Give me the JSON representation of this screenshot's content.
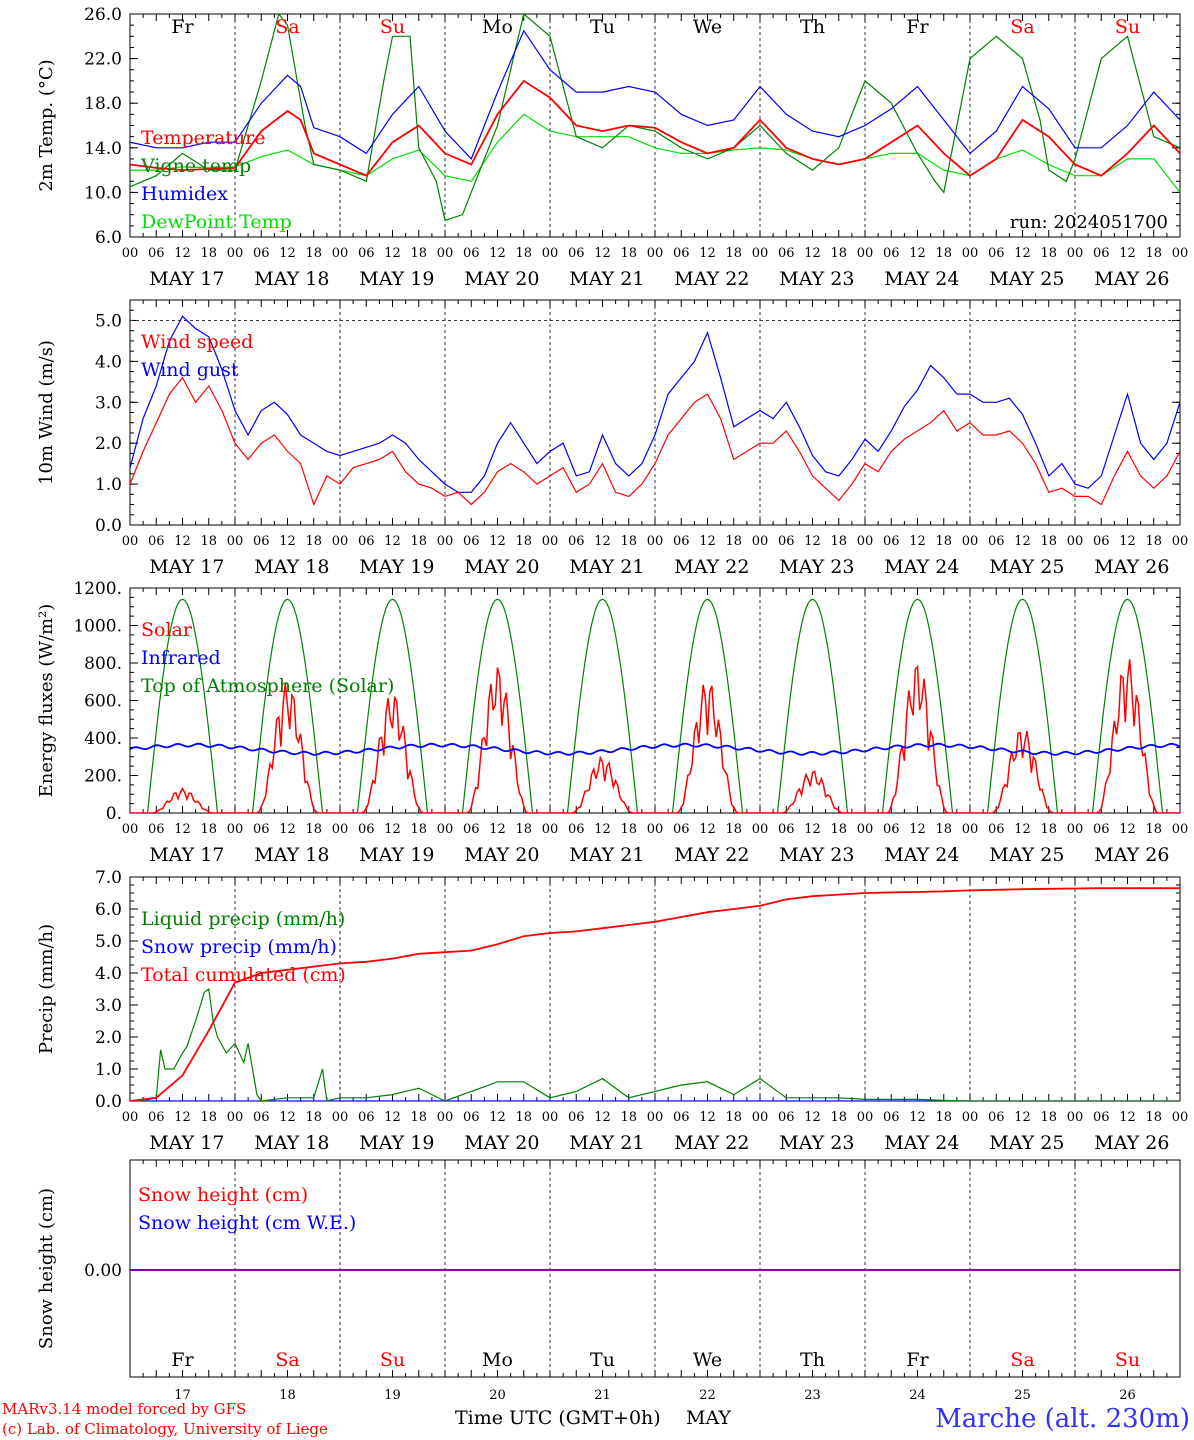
{
  "run_label": "run: 2024051700",
  "days": [
    "Fr",
    "Sa",
    "Su",
    "Mo",
    "Tu",
    "We",
    "Th",
    "Fr",
    "Sa",
    "Su"
  ],
  "weekend_flags": [
    false,
    true,
    true,
    false,
    false,
    false,
    false,
    false,
    true,
    true
  ],
  "dates": [
    "MAY 17",
    "MAY 18",
    "MAY 19",
    "MAY 20",
    "MAY 21",
    "MAY 22",
    "MAY 23",
    "MAY 24",
    "MAY 25",
    "MAY 26"
  ],
  "day_numbers": [
    "17",
    "18",
    "19",
    "20",
    "21",
    "22",
    "23",
    "24",
    "25",
    "26"
  ],
  "hour_ticks": [
    "00",
    "06",
    "12",
    "18"
  ],
  "footer": {
    "credit_line1": "MARv3.14 model forced by GFS",
    "credit_line2": "(c) Lab. of Climatology, University of Liege",
    "xlabel": "Time UTC (GMT+0h)",
    "month": "MAY",
    "station": "Marche (alt. 230m)"
  },
  "colors": {
    "red": "#ff0000",
    "blue": "#0000ff",
    "green": "#008000",
    "lightgreen": "#00e000",
    "purple": "#8000a0"
  },
  "chart_data": [
    {
      "type": "line",
      "ylabel": "2m Temp. (°C)",
      "ylim": [
        6,
        26
      ],
      "yticks": [
        "6.0",
        "10.0",
        "14.0",
        "18.0",
        "22.0",
        "26.0"
      ],
      "x_unit": "hours since 2024-05-17 00 UTC",
      "series": [
        {
          "name": "Temperature",
          "color": "#ff0000",
          "x": [
            0,
            6,
            12,
            18,
            24,
            30,
            36,
            39,
            42,
            48,
            54,
            60,
            66,
            72,
            78,
            84,
            90,
            96,
            102,
            108,
            114,
            120,
            126,
            132,
            138,
            144,
            150,
            156,
            162,
            168,
            174,
            180,
            186,
            192,
            198,
            204,
            210,
            216,
            222,
            228,
            234,
            240
          ],
          "y": [
            12.5,
            12.2,
            12.0,
            12.1,
            12.2,
            15.5,
            17.3,
            16.5,
            13.5,
            12.5,
            11.5,
            14.5,
            16.0,
            13.5,
            12.5,
            17.0,
            20.0,
            18.5,
            16.0,
            15.5,
            16.0,
            15.8,
            14.5,
            13.5,
            14.0,
            16.5,
            14.0,
            13.0,
            12.5,
            13.0,
            14.5,
            16.0,
            13.5,
            11.5,
            13.0,
            16.5,
            15.0,
            12.5,
            11.5,
            13.5,
            16.0,
            13.5
          ]
        },
        {
          "name": "Vigne temp",
          "color": "#008000",
          "x": [
            0,
            6,
            12,
            18,
            24,
            30,
            34,
            36,
            40,
            42,
            48,
            54,
            58,
            60,
            64,
            66,
            70,
            72,
            76,
            84,
            90,
            96,
            102,
            108,
            114,
            120,
            126,
            132,
            138,
            144,
            150,
            156,
            162,
            168,
            174,
            180,
            184,
            186,
            190,
            192,
            198,
            204,
            208,
            210,
            214,
            216,
            222,
            228,
            234,
            240
          ],
          "y": [
            10.5,
            11.5,
            13.5,
            12.0,
            12.0,
            20.0,
            26.0,
            25.0,
            16.0,
            12.5,
            12.0,
            11.0,
            20.0,
            24.0,
            24.0,
            14.0,
            11.0,
            7.5,
            8.0,
            16.0,
            26.0,
            24.0,
            15.0,
            14.0,
            16.0,
            15.5,
            14.0,
            13.0,
            14.0,
            16.0,
            13.5,
            12.0,
            14.0,
            20.0,
            18.0,
            13.5,
            11.0,
            10.0,
            18.0,
            22.0,
            24.0,
            22.0,
            16.5,
            12.0,
            11.0,
            13.0,
            22.0,
            24.0,
            15.0,
            14.0
          ]
        },
        {
          "name": "Humidex",
          "color": "#0000ff",
          "x": [
            0,
            6,
            12,
            18,
            24,
            30,
            36,
            39,
            42,
            48,
            54,
            60,
            66,
            72,
            78,
            84,
            90,
            96,
            102,
            108,
            114,
            120,
            126,
            132,
            138,
            144,
            150,
            156,
            162,
            168,
            174,
            180,
            186,
            192,
            198,
            204,
            210,
            216,
            222,
            228,
            234,
            240
          ],
          "y": [
            14.5,
            14.0,
            14.0,
            14.5,
            14.5,
            18.0,
            20.5,
            19.5,
            15.8,
            15.0,
            13.5,
            17.0,
            19.5,
            15.5,
            13.0,
            19.0,
            24.5,
            21.0,
            19.0,
            19.0,
            19.5,
            19.0,
            17.0,
            16.0,
            16.5,
            19.5,
            17.0,
            15.5,
            15.0,
            16.0,
            17.5,
            19.5,
            16.5,
            13.5,
            15.5,
            19.5,
            17.5,
            14.0,
            14.0,
            16.0,
            19.0,
            16.5
          ]
        },
        {
          "name": "DewPoint Temp",
          "color": "#00e000",
          "x": [
            0,
            6,
            12,
            18,
            24,
            30,
            36,
            42,
            48,
            54,
            60,
            66,
            72,
            78,
            84,
            90,
            96,
            102,
            108,
            114,
            120,
            126,
            132,
            138,
            144,
            150,
            156,
            162,
            168,
            174,
            180,
            186,
            192,
            198,
            204,
            210,
            216,
            222,
            228,
            234,
            240
          ],
          "y": [
            12.0,
            12.0,
            12.3,
            12.2,
            12.3,
            13.2,
            13.8,
            12.5,
            12.0,
            11.5,
            13.0,
            13.8,
            11.5,
            11.0,
            14.5,
            17.0,
            15.5,
            15.0,
            15.0,
            15.0,
            14.0,
            13.5,
            13.5,
            13.8,
            14.0,
            13.8,
            13.0,
            12.5,
            13.0,
            13.5,
            13.5,
            12.0,
            11.5,
            13.0,
            13.8,
            12.5,
            11.5,
            11.5,
            13.0,
            13.0,
            10.0
          ]
        }
      ]
    },
    {
      "type": "line",
      "ylabel": "10m Wind (m/s)",
      "ylim": [
        0,
        5.5
      ],
      "yticks": [
        "0.0",
        "1.0",
        "2.0",
        "3.0",
        "4.0",
        "5.0"
      ],
      "series": [
        {
          "name": "Wind speed",
          "color": "#ff0000",
          "x": [
            0,
            3,
            6,
            9,
            12,
            15,
            18,
            21,
            24,
            27,
            30,
            33,
            36,
            39,
            42,
            45,
            48,
            51,
            54,
            57,
            60,
            63,
            66,
            69,
            72,
            75,
            78,
            81,
            84,
            87,
            90,
            93,
            96,
            99,
            102,
            105,
            108,
            111,
            114,
            117,
            120,
            123,
            126,
            129,
            132,
            135,
            138,
            141,
            144,
            147,
            150,
            153,
            156,
            159,
            162,
            165,
            168,
            171,
            174,
            177,
            180,
            183,
            186,
            189,
            192,
            195,
            198,
            201,
            204,
            207,
            210,
            213,
            216,
            219,
            222,
            225,
            228,
            231,
            234,
            237,
            240
          ],
          "y": [
            1.0,
            1.8,
            2.5,
            3.2,
            3.6,
            3.0,
            3.4,
            2.8,
            2.0,
            1.6,
            2.0,
            2.2,
            1.8,
            1.5,
            0.5,
            1.2,
            1.0,
            1.4,
            1.5,
            1.6,
            1.8,
            1.3,
            1.0,
            0.9,
            0.7,
            0.8,
            0.5,
            0.8,
            1.3,
            1.5,
            1.3,
            1.0,
            1.2,
            1.4,
            0.8,
            1.0,
            1.5,
            0.8,
            0.7,
            1.0,
            1.5,
            2.2,
            2.6,
            3.0,
            3.2,
            2.6,
            1.6,
            1.8,
            2.0,
            2.0,
            2.3,
            1.8,
            1.2,
            0.9,
            0.6,
            1.0,
            1.5,
            1.3,
            1.8,
            2.1,
            2.3,
            2.5,
            2.8,
            2.3,
            2.5,
            2.2,
            2.2,
            2.3,
            2.0,
            1.5,
            0.8,
            0.9,
            0.7,
            0.7,
            0.5,
            1.2,
            1.8,
            1.2,
            0.9,
            1.2,
            1.8
          ]
        },
        {
          "name": "Wind gust",
          "color": "#0000ff",
          "x": [
            0,
            3,
            6,
            9,
            12,
            15,
            18,
            21,
            24,
            27,
            30,
            33,
            36,
            39,
            42,
            45,
            48,
            51,
            54,
            57,
            60,
            63,
            66,
            69,
            72,
            75,
            78,
            81,
            84,
            87,
            90,
            93,
            96,
            99,
            102,
            105,
            108,
            111,
            114,
            117,
            120,
            123,
            126,
            129,
            132,
            135,
            138,
            141,
            144,
            147,
            150,
            153,
            156,
            159,
            162,
            165,
            168,
            171,
            174,
            177,
            180,
            183,
            186,
            189,
            192,
            195,
            198,
            201,
            204,
            207,
            210,
            213,
            216,
            219,
            222,
            225,
            228,
            231,
            234,
            237,
            240
          ],
          "y": [
            1.4,
            2.6,
            3.4,
            4.5,
            5.1,
            4.8,
            4.6,
            3.8,
            2.8,
            2.2,
            2.8,
            3.0,
            2.7,
            2.2,
            2.0,
            1.8,
            1.7,
            1.8,
            1.9,
            2.0,
            2.2,
            2.0,
            1.6,
            1.3,
            1.0,
            0.8,
            0.8,
            1.2,
            2.0,
            2.5,
            2.0,
            1.5,
            1.8,
            2.0,
            1.2,
            1.3,
            2.2,
            1.5,
            1.2,
            1.5,
            2.2,
            3.2,
            3.6,
            4.0,
            4.7,
            3.6,
            2.4,
            2.6,
            2.8,
            2.6,
            3.0,
            2.4,
            1.7,
            1.3,
            1.2,
            1.6,
            2.1,
            1.8,
            2.3,
            2.9,
            3.3,
            3.9,
            3.6,
            3.2,
            3.2,
            3.0,
            3.0,
            3.1,
            2.7,
            2.0,
            1.2,
            1.5,
            1.0,
            0.9,
            1.2,
            2.2,
            3.2,
            2.0,
            1.6,
            2.0,
            3.0
          ]
        }
      ]
    },
    {
      "type": "line",
      "ylabel": "Energy fluxes (W/m²)",
      "ylim": [
        0,
        1200
      ],
      "yticks": [
        "0.",
        "200.",
        "400.",
        "600.",
        "800.",
        "1000.",
        "1200."
      ],
      "series": [
        {
          "name": "Solar",
          "color": "#ff0000",
          "daily_peaks": [
            130,
            700,
            650,
            790,
            300,
            720,
            230,
            810,
            460,
            830
          ]
        },
        {
          "name": "Infrared",
          "color": "#0000ff",
          "value_range": [
            300,
            380
          ]
        },
        {
          "name": "Top of Atmosphere (Solar)",
          "color": "#008000",
          "daily_peak": 1140
        }
      ]
    },
    {
      "type": "line",
      "ylabel": "Precip (mm/h)",
      "ylim": [
        0,
        7
      ],
      "yticks": [
        "0.0",
        "1.0",
        "2.0",
        "3.0",
        "4.0",
        "5.0",
        "6.0",
        "7.0"
      ],
      "series": [
        {
          "name": "Liquid precip (mm/h)",
          "color": "#008000",
          "x": [
            0,
            3,
            6,
            7,
            8,
            10,
            12,
            13,
            15,
            17,
            18,
            19,
            20,
            22,
            24,
            26,
            27,
            29,
            30,
            36,
            42,
            44,
            45,
            48,
            54,
            60,
            66,
            72,
            78,
            84,
            90,
            96,
            102,
            108,
            114,
            120,
            126,
            132,
            138,
            144,
            150,
            156,
            162,
            168,
            174,
            180,
            186,
            192,
            198,
            204,
            210,
            216,
            222,
            228,
            234,
            240
          ],
          "y": [
            0,
            0,
            0.1,
            1.6,
            1.0,
            1.0,
            1.5,
            1.7,
            2.5,
            3.4,
            3.5,
            2.5,
            2.0,
            1.5,
            1.8,
            1.2,
            1.8,
            0.2,
            0,
            0.1,
            0.1,
            1.0,
            0,
            0.1,
            0.1,
            0.2,
            0.4,
            0,
            0.3,
            0.6,
            0.6,
            0.1,
            0.3,
            0.7,
            0.1,
            0.3,
            0.5,
            0.6,
            0.2,
            0.7,
            0.1,
            0.1,
            0.1,
            0.05,
            0.05,
            0.05,
            0.02,
            0,
            0,
            0,
            0,
            0,
            0,
            0,
            0,
            0
          ]
        },
        {
          "name": "Snow precip (mm/h)",
          "color": "#0000ff",
          "x": [
            0,
            240
          ],
          "y": [
            0,
            0
          ]
        },
        {
          "name": "Total cumulated (cm)",
          "color": "#ff0000",
          "x": [
            0,
            6,
            12,
            18,
            24,
            30,
            36,
            42,
            48,
            54,
            60,
            66,
            72,
            78,
            84,
            90,
            96,
            102,
            108,
            114,
            120,
            126,
            132,
            138,
            144,
            150,
            156,
            162,
            168,
            174,
            180,
            186,
            192,
            198,
            204,
            210,
            216,
            222,
            228,
            234,
            240
          ],
          "y": [
            0,
            0.1,
            0.8,
            2.2,
            3.7,
            4.0,
            4.1,
            4.2,
            4.3,
            4.35,
            4.45,
            4.6,
            4.65,
            4.7,
            4.9,
            5.15,
            5.25,
            5.3,
            5.4,
            5.5,
            5.6,
            5.75,
            5.9,
            6.0,
            6.1,
            6.3,
            6.4,
            6.45,
            6.5,
            6.52,
            6.53,
            6.55,
            6.58,
            6.6,
            6.62,
            6.63,
            6.64,
            6.65,
            6.65,
            6.65,
            6.65
          ]
        }
      ]
    },
    {
      "type": "line",
      "ylabel": "Snow height (cm)",
      "yticks": [
        "0.00"
      ],
      "series": [
        {
          "name": "Snow height (cm)",
          "color": "#ff0000",
          "x": [
            0,
            240
          ],
          "y": [
            0,
            0
          ]
        },
        {
          "name": "Snow height (cm W.E.)",
          "color": "#0000ff",
          "x": [
            0,
            240
          ],
          "y": [
            0,
            0
          ]
        }
      ]
    }
  ]
}
